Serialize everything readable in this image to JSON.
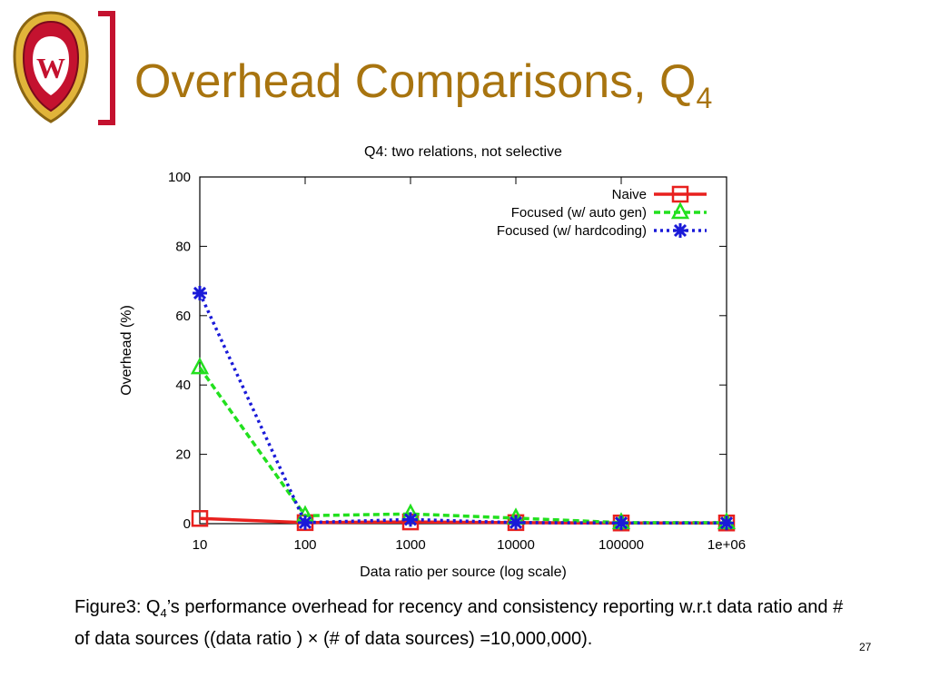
{
  "slide": {
    "title": "Overhead Comparisons, Q",
    "title_subscript": "4",
    "page_number": "27",
    "accent_color": "#a8740f",
    "bracket_color": "#c4122f"
  },
  "logo": {
    "icon": "uw-crest-icon",
    "letter": "W"
  },
  "caption": {
    "prefix": "Figure3: Q",
    "subscript": "4",
    "text": "’s performance overhead for recency and consistency reporting w.r.t data ratio and # of data sources ((data ratio ) × (# of data sources) =10,000,000)."
  },
  "chart_data": {
    "type": "line",
    "title": "Q4: two relations, not selective",
    "xlabel": "Data ratio per source (log scale)",
    "ylabel": "Overhead (%)",
    "x_scale": "log",
    "x": [
      10,
      100,
      1000,
      10000,
      100000,
      1000000
    ],
    "x_tick_labels": [
      "10",
      "100",
      "1000",
      "10000",
      "100000",
      "1e+06"
    ],
    "y_ticks": [
      "0",
      "20",
      "40",
      "60",
      "80",
      "100"
    ],
    "ylim": [
      0,
      100
    ],
    "grid": false,
    "legend_position": "top-right",
    "series": [
      {
        "name": "Naive",
        "values": [
          1.5,
          0.3,
          0.5,
          0.3,
          0.2,
          0.2
        ],
        "color": "#e8201e",
        "dash": "solid",
        "marker": "square"
      },
      {
        "name": "Focused (w/ auto gen)",
        "values": [
          45,
          2.3,
          2.8,
          1.6,
          0.3,
          0.3
        ],
        "color": "#22e01e",
        "dash": "dashed",
        "marker": "triangle"
      },
      {
        "name": "Focused (w/ hardcoding)",
        "values": [
          66.5,
          0.3,
          1.2,
          0.3,
          0.2,
          0.2
        ],
        "color": "#1a1ad8",
        "dash": "dotted",
        "marker": "star"
      }
    ]
  }
}
